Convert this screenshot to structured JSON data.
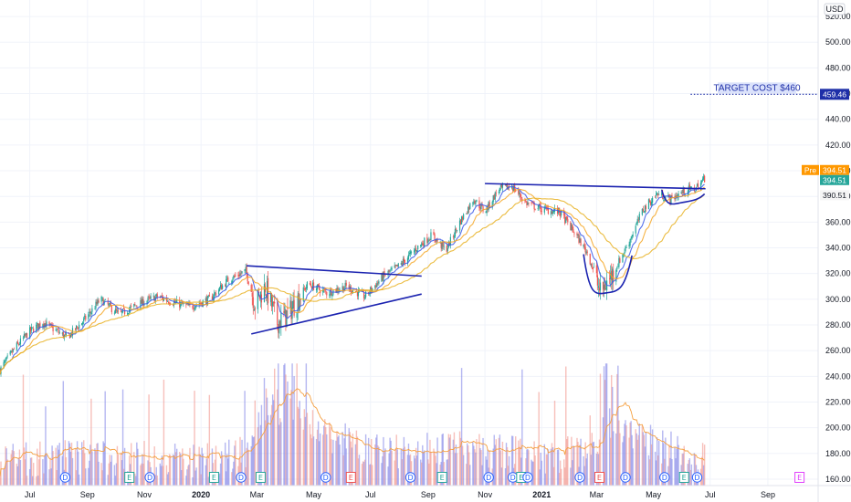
{
  "chart_data": {
    "type": "candlestick",
    "currency_label": "USD",
    "y_ticks": [
      160,
      180,
      200,
      220,
      240,
      260,
      280,
      300,
      320,
      340,
      360,
      380,
      400,
      420,
      440,
      460,
      480,
      500,
      520
    ],
    "ylim": [
      155,
      530
    ],
    "x_ticks": [
      {
        "label": "Jul",
        "date": "2019-07-01",
        "bold": false
      },
      {
        "label": "Sep",
        "date": "2019-09-01",
        "bold": false
      },
      {
        "label": "Nov",
        "date": "2019-11-01",
        "bold": false
      },
      {
        "label": "2020",
        "date": "2020-01-01",
        "bold": true
      },
      {
        "label": "Mar",
        "date": "2020-03-01",
        "bold": false
      },
      {
        "label": "May",
        "date": "2020-05-01",
        "bold": false
      },
      {
        "label": "Jul",
        "date": "2020-07-01",
        "bold": false
      },
      {
        "label": "Sep",
        "date": "2020-09-01",
        "bold": false
      },
      {
        "label": "Nov",
        "date": "2020-11-01",
        "bold": false
      },
      {
        "label": "2021",
        "date": "2021-01-01",
        "bold": true
      },
      {
        "label": "Mar",
        "date": "2021-03-01",
        "bold": false
      },
      {
        "label": "May",
        "date": "2021-05-01",
        "bold": false
      },
      {
        "label": "Jul",
        "date": "2021-07-01",
        "bold": false
      },
      {
        "label": "Sep",
        "date": "2021-09-01",
        "bold": false
      }
    ],
    "xlim": [
      "2019-05-30",
      "2021-10-25"
    ],
    "price_path": [
      [
        "2019-05-30",
        245
      ],
      [
        "2019-06-15",
        262
      ],
      [
        "2019-07-01",
        275
      ],
      [
        "2019-07-15",
        282
      ],
      [
        "2019-08-10",
        270
      ],
      [
        "2019-08-30",
        285
      ],
      [
        "2019-09-15",
        300
      ],
      [
        "2019-10-05",
        288
      ],
      [
        "2019-10-25",
        296
      ],
      [
        "2019-11-15",
        302
      ],
      [
        "2019-12-05",
        297
      ],
      [
        "2019-12-20",
        294
      ],
      [
        "2020-01-10",
        300
      ],
      [
        "2020-01-30",
        315
      ],
      [
        "2020-02-18",
        322
      ],
      [
        "2020-02-28",
        296
      ],
      [
        "2020-03-10",
        310
      ],
      [
        "2020-03-23",
        282
      ],
      [
        "2020-04-05",
        290
      ],
      [
        "2020-04-25",
        312
      ],
      [
        "2020-05-15",
        305
      ],
      [
        "2020-06-05",
        310
      ],
      [
        "2020-06-25",
        302
      ],
      [
        "2020-07-15",
        318
      ],
      [
        "2020-08-01",
        326
      ],
      [
        "2020-08-20",
        340
      ],
      [
        "2020-09-05",
        350
      ],
      [
        "2020-09-20",
        338
      ],
      [
        "2020-10-05",
        360
      ],
      [
        "2020-10-20",
        378
      ],
      [
        "2020-11-01",
        368
      ],
      [
        "2020-11-15",
        385
      ],
      [
        "2020-11-30",
        388
      ],
      [
        "2020-12-15",
        375
      ],
      [
        "2021-01-01",
        370
      ],
      [
        "2021-01-20",
        368
      ],
      [
        "2021-02-05",
        352
      ],
      [
        "2021-02-20",
        335
      ],
      [
        "2021-03-05",
        305
      ],
      [
        "2021-03-20",
        322
      ],
      [
        "2021-04-05",
        345
      ],
      [
        "2021-04-20",
        370
      ],
      [
        "2021-05-05",
        382
      ],
      [
        "2021-05-20",
        378
      ],
      [
        "2021-06-05",
        385
      ],
      [
        "2021-06-15",
        386
      ],
      [
        "2021-06-25",
        394
      ]
    ],
    "volume_path": [
      [
        "2019-05-30",
        175
      ],
      [
        "2019-08-10",
        178
      ],
      [
        "2019-10-01",
        178
      ],
      [
        "2020-01-15",
        176
      ],
      [
        "2020-02-20",
        185
      ],
      [
        "2020-03-15",
        220
      ],
      [
        "2020-04-10",
        212
      ],
      [
        "2020-05-20",
        195
      ],
      [
        "2020-07-15",
        182
      ],
      [
        "2020-09-10",
        186
      ],
      [
        "2020-11-01",
        184
      ],
      [
        "2021-01-10",
        178
      ],
      [
        "2021-02-20",
        185
      ],
      [
        "2021-03-20",
        205
      ],
      [
        "2021-04-20",
        192
      ],
      [
        "2021-06-25",
        176
      ]
    ],
    "volume_scale_note": "volume pane plotted against shared right axis",
    "moving_averages": [
      {
        "color": "#3a58e8",
        "period": 10
      },
      {
        "color": "#f5a623",
        "period": 20
      },
      {
        "color": "#e8b020",
        "period": 50
      }
    ],
    "trendlines": [
      {
        "from": [
          "2020-02-19",
          326
        ],
        "to": [
          "2020-08-25",
          318
        ],
        "color": "#1b23b0"
      },
      {
        "from": [
          "2020-02-24",
          273
        ],
        "to": [
          "2020-08-25",
          304
        ],
        "color": "#1b23b0"
      },
      {
        "from": [
          "2020-11-01",
          390
        ],
        "to": [
          "2021-06-26",
          386
        ],
        "color": "#1b23b0"
      }
    ],
    "cups": [
      {
        "left": [
          "2021-02-15",
          335
        ],
        "bottom": [
          "2021-03-12",
          305
        ],
        "right": [
          "2021-04-08",
          334
        ],
        "color": "#1b23b0"
      },
      {
        "left": [
          "2021-05-10",
          385
        ],
        "bottom": [
          "2021-05-30",
          375
        ],
        "right": [
          "2021-06-25",
          382
        ],
        "color": "#1b23b0"
      }
    ],
    "target": {
      "text": "TARGET COST $460",
      "value": 459.46,
      "value_label": "459.46",
      "from_date": "2021-06-10"
    },
    "price_tags": [
      {
        "prefix": "Pre",
        "label": "394.51",
        "value": 394.51,
        "color": "#ff9800"
      },
      {
        "prefix": "",
        "label": "394.51",
        "value": 394.51,
        "color": "#26a69a"
      },
      {
        "prefix": "",
        "label": "390.51",
        "value": 390.51,
        "color": "#f5f5f5",
        "text_color": "#131722"
      }
    ],
    "events": [
      {
        "type": "D",
        "date": "2019-08-08"
      },
      {
        "type": "E",
        "date": "2019-10-16"
      },
      {
        "type": "D",
        "date": "2019-11-07"
      },
      {
        "type": "E",
        "date": "2020-01-15"
      },
      {
        "type": "D",
        "date": "2020-02-13"
      },
      {
        "type": "E",
        "date": "2020-03-05"
      },
      {
        "type": "D",
        "date": "2020-05-14"
      },
      {
        "type": "E",
        "date": "2020-06-10",
        "negative": true
      },
      {
        "type": "D",
        "date": "2020-08-13"
      },
      {
        "type": "E",
        "date": "2020-09-16"
      },
      {
        "type": "D",
        "date": "2020-11-05"
      },
      {
        "type": "D",
        "date": "2020-12-01"
      },
      {
        "type": "E",
        "date": "2020-12-10"
      },
      {
        "type": "D",
        "date": "2020-12-17"
      },
      {
        "type": "D",
        "date": "2021-02-11"
      },
      {
        "type": "E",
        "date": "2021-03-04",
        "negative": true
      },
      {
        "type": "D",
        "date": "2021-04-01"
      },
      {
        "type": "D",
        "date": "2021-05-13"
      },
      {
        "type": "E",
        "date": "2021-06-03"
      },
      {
        "type": "D",
        "date": "2021-06-17"
      },
      {
        "type": "E",
        "date": "2021-10-05",
        "future": true
      }
    ]
  }
}
